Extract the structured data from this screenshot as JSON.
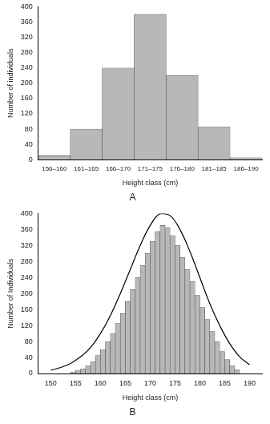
{
  "chart_data": [
    {
      "type": "bar",
      "title": "A",
      "x_label": "Height class (cm)",
      "y_label": "Number of individuals",
      "categories": [
        "156–160",
        "161–165",
        "166–170",
        "171–175",
        "176–180",
        "181–185",
        "186–190"
      ],
      "values": [
        10,
        80,
        240,
        380,
        220,
        85,
        5
      ],
      "color": "#b8b8b8",
      "ylim": [
        0,
        400
      ],
      "yticks": [
        0,
        40,
        80,
        120,
        160,
        200,
        240,
        280,
        320,
        360,
        400
      ],
      "grid": false
    },
    {
      "type": "histogram",
      "title": "B",
      "x_label": "Height class (cm)",
      "y_label": "Number of Individuals",
      "bins": [
        154,
        155,
        156,
        157,
        158,
        159,
        160,
        161,
        162,
        163,
        164,
        165,
        166,
        167,
        168,
        169,
        170,
        171,
        172,
        173,
        174,
        175,
        176,
        177,
        178,
        179,
        180,
        181,
        182,
        183,
        184,
        185,
        186,
        187,
        188
      ],
      "values": [
        4,
        8,
        12,
        20,
        30,
        45,
        60,
        80,
        100,
        125,
        150,
        180,
        210,
        240,
        270,
        300,
        330,
        355,
        370,
        365,
        345,
        320,
        290,
        260,
        230,
        195,
        165,
        135,
        105,
        80,
        55,
        35,
        20,
        10
      ],
      "color": "#b8b8b8",
      "curve": {
        "x": [
          150,
          152,
          154,
          156,
          158,
          160,
          162,
          164,
          166,
          168,
          170,
          172,
          174,
          176,
          178,
          180,
          182,
          184,
          186,
          188,
          190
        ],
        "values": [
          8,
          15,
          25,
          42,
          65,
          100,
          145,
          200,
          260,
          320,
          370,
          400,
          395,
          360,
          305,
          240,
          175,
          120,
          75,
          42,
          22
        ],
        "color": "#000000"
      },
      "xlim": [
        150,
        190
      ],
      "xticks": [
        150,
        155,
        160,
        165,
        170,
        175,
        180,
        185,
        190
      ],
      "ylim": [
        0,
        400
      ],
      "yticks": [
        0,
        40,
        80,
        120,
        160,
        200,
        240,
        280,
        320,
        360,
        400
      ],
      "grid": false
    }
  ]
}
